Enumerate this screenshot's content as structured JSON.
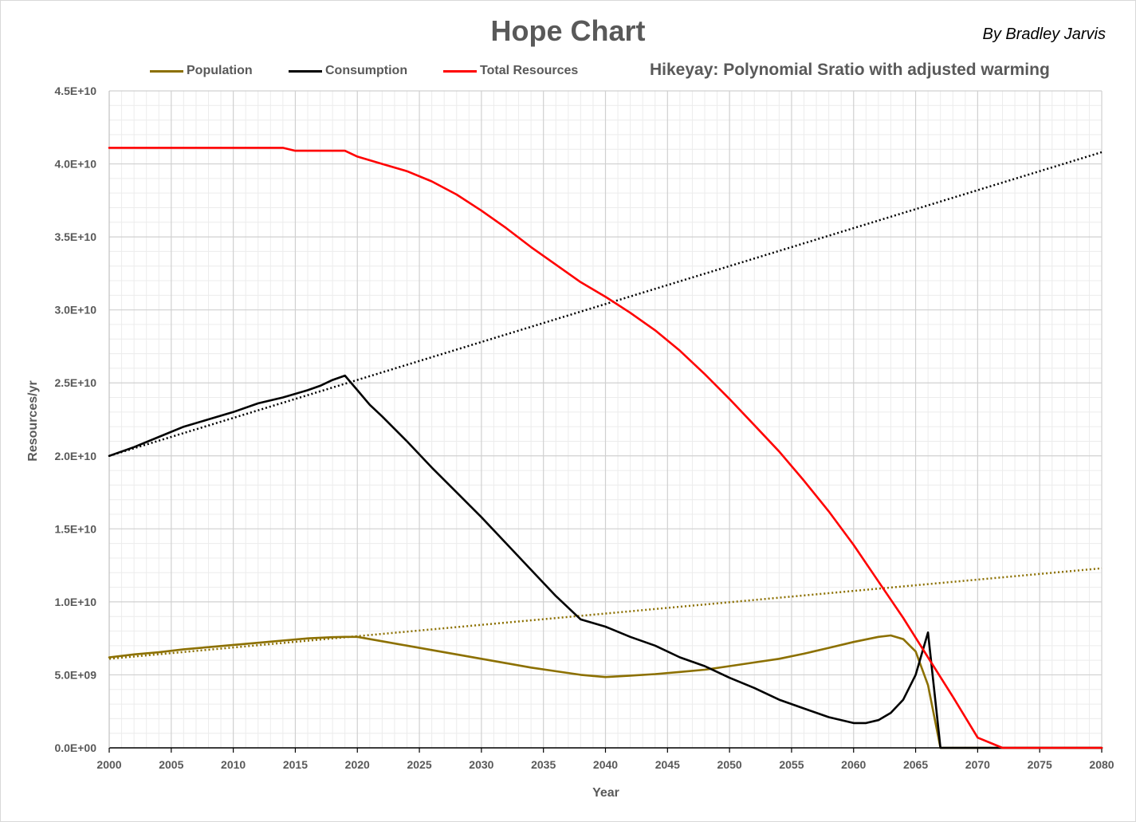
{
  "header": {
    "title": "Hope Chart",
    "byline": "By Bradley Jarvis",
    "subtitle": "Hikeyay: Polynomial Sratio with adjusted warming"
  },
  "chart_data": {
    "type": "line",
    "title": "Hope Chart",
    "subtitle": "Hikeyay: Polynomial Sratio with adjusted warming",
    "xlabel": "Year",
    "ylabel": "Resources/yr",
    "xlim": [
      2000,
      2080
    ],
    "ylim": [
      0,
      45000000000
    ],
    "x_ticks": [
      "2000",
      "2005",
      "2010",
      "2015",
      "2020",
      "2025",
      "2030",
      "2035",
      "2040",
      "2045",
      "2050",
      "2055",
      "2060",
      "2065",
      "2070",
      "2075",
      "2080"
    ],
    "y_ticks": [
      "0.0E+00",
      "5.0E+09",
      "1.0E+10",
      "1.5E+10",
      "2.0E+10",
      "2.5E+10",
      "3.0E+10",
      "3.5E+10",
      "4.0E+10",
      "4.5E+10"
    ],
    "grid": true,
    "legend_position": "top",
    "series": [
      {
        "name": "Population",
        "color": "#8c7000",
        "x": [
          2000,
          2002,
          2004,
          2006,
          2008,
          2010,
          2012,
          2014,
          2016,
          2018,
          2019,
          2020,
          2022,
          2024,
          2026,
          2028,
          2030,
          2032,
          2034,
          2036,
          2038,
          2040,
          2042,
          2044,
          2046,
          2048,
          2050,
          2052,
          2054,
          2056,
          2058,
          2060,
          2062,
          2063,
          2064,
          2065,
          2066,
          2067,
          2080
        ],
        "y": [
          6200000000.0,
          6400000000.0,
          6550000000.0,
          6750000000.0,
          6900000000.0,
          7050000000.0,
          7200000000.0,
          7350000000.0,
          7500000000.0,
          7580000000.0,
          7600000000.0,
          7600000000.0,
          7300000000.0,
          7000000000.0,
          6700000000.0,
          6400000000.0,
          6100000000.0,
          5800000000.0,
          5500000000.0,
          5250000000.0,
          5000000000.0,
          4850000000.0,
          4950000000.0,
          5050000000.0,
          5200000000.0,
          5350000000.0,
          5600000000.0,
          5850000000.0,
          6100000000.0,
          6450000000.0,
          6850000000.0,
          7250000000.0,
          7600000000.0,
          7700000000.0,
          7450000000.0,
          6600000000.0,
          4300000000.0,
          0,
          0
        ]
      },
      {
        "name": "Consumption",
        "color": "#000000",
        "x": [
          2000,
          2002,
          2004,
          2006,
          2008,
          2010,
          2012,
          2014,
          2016,
          2017,
          2018,
          2019,
          2020,
          2021,
          2022,
          2024,
          2026,
          2028,
          2030,
          2032,
          2034,
          2036,
          2038,
          2040,
          2042,
          2044,
          2046,
          2048,
          2050,
          2052,
          2054,
          2056,
          2058,
          2060,
          2061,
          2062,
          2063,
          2064,
          2065,
          2066,
          2067,
          2080
        ],
        "y": [
          20000000000.0,
          20600000000.0,
          21300000000.0,
          22000000000.0,
          22500000000.0,
          23000000000.0,
          23600000000.0,
          24000000000.0,
          24500000000.0,
          24800000000.0,
          25200000000.0,
          25500000000.0,
          24500000000.0,
          23500000000.0,
          22700000000.0,
          21000000000.0,
          19200000000.0,
          17500000000.0,
          15800000000.0,
          14000000000.0,
          12200000000.0,
          10400000000.0,
          8800000000.0,
          8300000000.0,
          7600000000.0,
          7000000000.0,
          6200000000.0,
          5600000000.0,
          4800000000.0,
          4100000000.0,
          3300000000.0,
          2700000000.0,
          2100000000.0,
          1700000000.0,
          1700000000.0,
          1900000000.0,
          2400000000.0,
          3300000000.0,
          5000000000.0,
          7900000000.0,
          0,
          0
        ]
      },
      {
        "name": "Total Resources",
        "color": "#ff0000",
        "x": [
          2000,
          2014,
          2015,
          2016,
          2017,
          2018,
          2019,
          2020,
          2022,
          2024,
          2026,
          2028,
          2030,
          2032,
          2034,
          2036,
          2038,
          2040,
          2042,
          2044,
          2046,
          2048,
          2050,
          2052,
          2054,
          2056,
          2058,
          2060,
          2062,
          2064,
          2066,
          2068,
          2070,
          2072,
          2074,
          2080
        ],
        "y": [
          41100000000.0,
          41100000000.0,
          40900000000.0,
          40900000000.0,
          40900000000.0,
          40900000000.0,
          40900000000.0,
          40500000000.0,
          40000000000.0,
          39500000000.0,
          38800000000.0,
          37900000000.0,
          36800000000.0,
          35600000000.0,
          34300000000.0,
          33100000000.0,
          31900000000.0,
          30900000000.0,
          29800000000.0,
          28600000000.0,
          27200000000.0,
          25600000000.0,
          23900000000.0,
          22100000000.0,
          20300000000.0,
          18300000000.0,
          16200000000.0,
          13900000000.0,
          11400000000.0,
          8900000000.0,
          6200000000.0,
          3500000000.0,
          700000000.0,
          0,
          0,
          0
        ]
      }
    ],
    "trendlines": [
      {
        "of": "Consumption",
        "color": "#000000",
        "x": [
          2000,
          2080
        ],
        "y": [
          20000000000.0,
          40800000000.0
        ]
      },
      {
        "of": "Population",
        "color": "#8c7000",
        "x": [
          2000,
          2080
        ],
        "y": [
          6100000000.0,
          12300000000.0
        ]
      }
    ]
  }
}
